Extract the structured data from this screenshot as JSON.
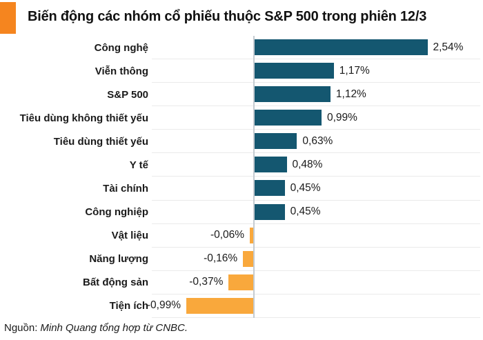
{
  "header": {
    "title": "Biến động các nhóm cổ phiếu thuộc S&P 500 trong phiên 12/3"
  },
  "footer": {
    "source_label": "Nguồn:",
    "source_text": "Minh Quang tổng hợp từ CNBC."
  },
  "colors": {
    "positive_bar": "#145770",
    "negative_bar": "#F9A83C",
    "title_accent": "#F5851F",
    "gridline": "#EAEAEA",
    "zero_line": "#C4CBD1",
    "text": "#1A1A1A"
  },
  "chart_data": {
    "type": "bar",
    "orientation": "horizontal",
    "title": "Biến động các nhóm cổ phiếu thuộc S&P 500 trong phiên 12/3",
    "categories": [
      "Công nghệ",
      "Viễn thông",
      "S&P 500",
      "Tiêu dùng không thiết yếu",
      "Tiêu dùng thiết yếu",
      "Y tế",
      "Tài chính",
      "Công nghiệp",
      "Vật liệu",
      "Năng lượng",
      "Bất động sản",
      "Tiện ích"
    ],
    "values": [
      2.54,
      1.17,
      1.12,
      0.99,
      0.63,
      0.48,
      0.45,
      0.45,
      -0.06,
      -0.16,
      -0.37,
      -0.99
    ],
    "value_labels": [
      "2,54%",
      "1,17%",
      "1,12%",
      "0,99%",
      "0,63%",
      "0,48%",
      "0,45%",
      "0,45%",
      "-0,06%",
      "-0,16%",
      "-0,37%",
      "-0,99%"
    ],
    "unit": "%",
    "xlim": [
      -1.49,
      3.35
    ],
    "grid": "row-separators-only",
    "legend": false,
    "bar_label_position": "outside-end",
    "source": "Nguồn: Minh Quang tổng hợp từ CNBC."
  }
}
